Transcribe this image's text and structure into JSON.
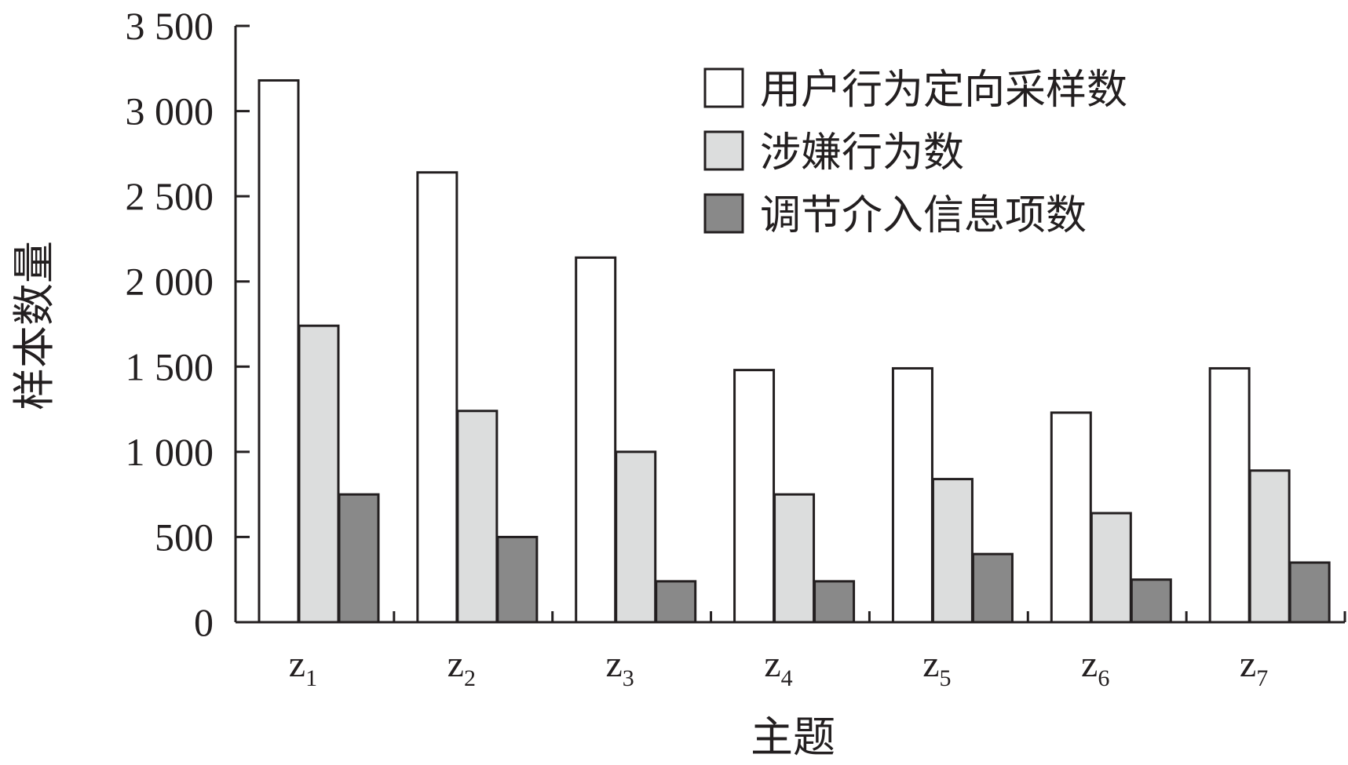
{
  "chart_data": {
    "type": "bar",
    "xlabel": "主题",
    "ylabel": "样本数量",
    "ylim": [
      0,
      3500
    ],
    "yticks": [
      0,
      500,
      1000,
      1500,
      2000,
      2500,
      3000,
      3500
    ],
    "ytick_labels": [
      "0",
      "500",
      "1 000",
      "1 500",
      "2 000",
      "2 500",
      "3 000",
      "3 500"
    ],
    "categories": [
      {
        "base": "z",
        "sub": "1"
      },
      {
        "base": "z",
        "sub": "2"
      },
      {
        "base": "z",
        "sub": "3"
      },
      {
        "base": "z",
        "sub": "4"
      },
      {
        "base": "z",
        "sub": "5"
      },
      {
        "base": "z",
        "sub": "6"
      },
      {
        "base": "z",
        "sub": "7"
      }
    ],
    "series": [
      {
        "name": "用户行为定向采样数",
        "color": "#ffffff",
        "values": [
          3180,
          2640,
          2140,
          1480,
          1490,
          1230,
          1490
        ]
      },
      {
        "name": "涉嫌行为数",
        "color": "#dcdddd",
        "values": [
          1740,
          1240,
          1000,
          750,
          840,
          640,
          890
        ]
      },
      {
        "name": "调节介入信息项数",
        "color": "#898989",
        "values": [
          750,
          500,
          240,
          240,
          400,
          250,
          350
        ]
      }
    ],
    "legend_position": "top-right",
    "grid": false
  }
}
